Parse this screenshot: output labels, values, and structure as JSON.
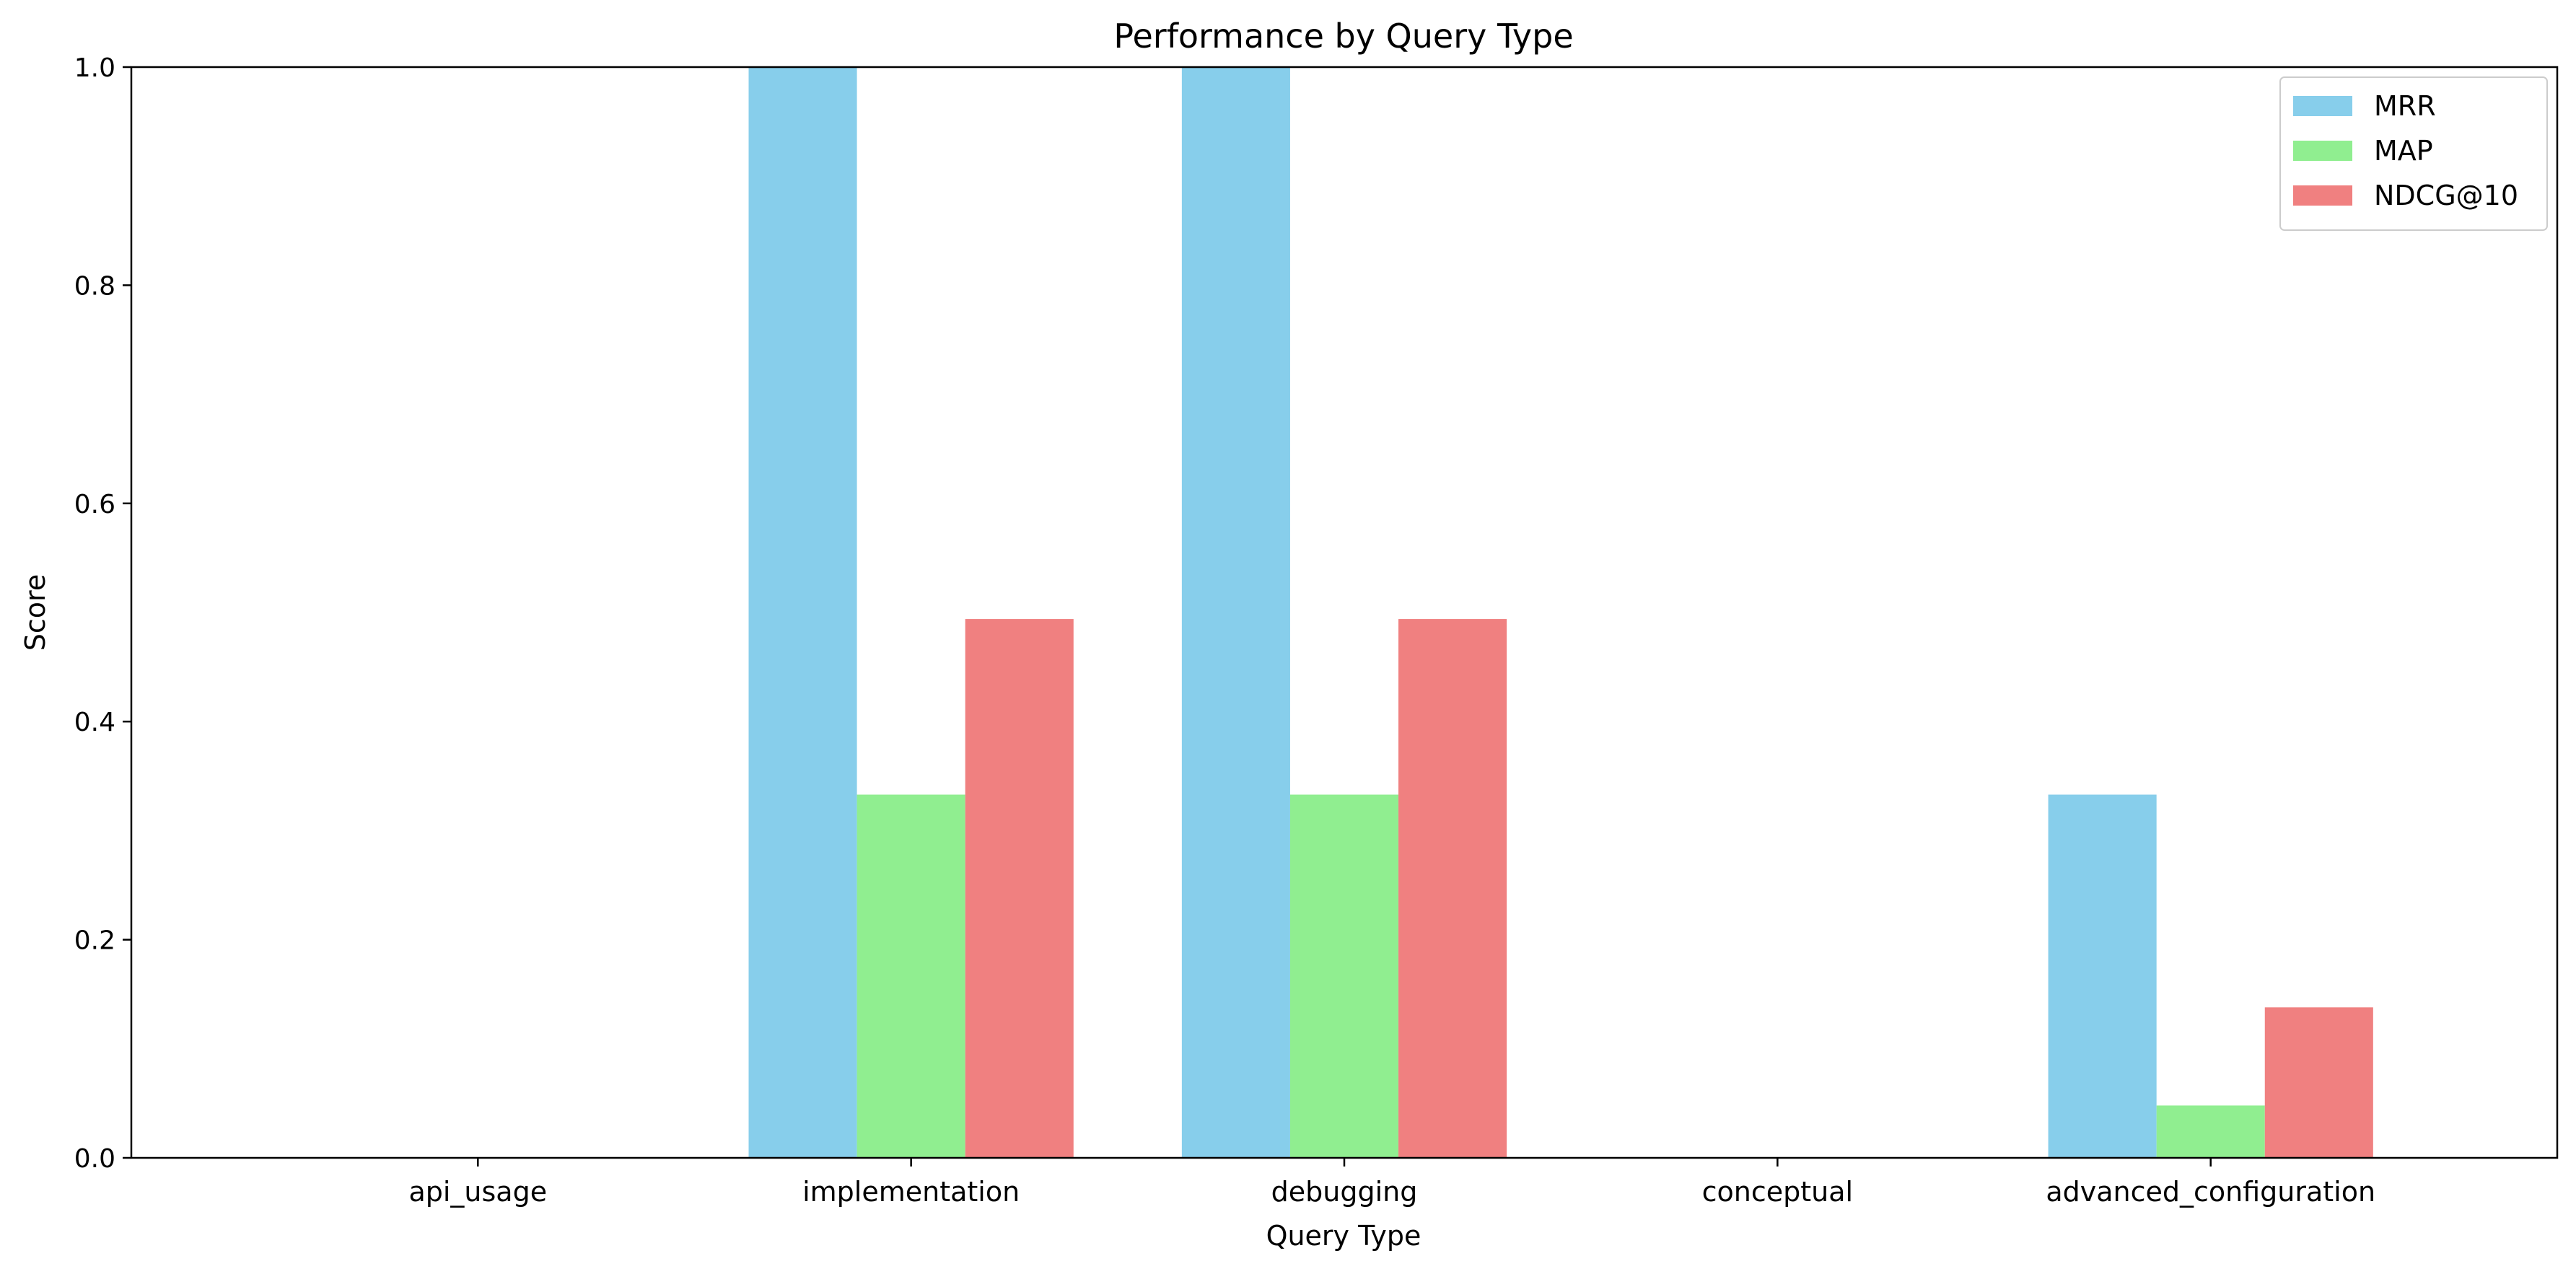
{
  "chart_data": {
    "type": "bar",
    "title": "Performance by Query Type",
    "xlabel": "Query Type",
    "ylabel": "Score",
    "ylim": [
      0,
      1
    ],
    "yticks": [
      0.0,
      0.2,
      0.4,
      0.6,
      0.8,
      1.0
    ],
    "ytick_labels": [
      "0.0",
      "0.2",
      "0.4",
      "0.6",
      "0.8",
      "1.0"
    ],
    "categories": [
      "api_usage",
      "implementation",
      "debugging",
      "conceptual",
      "advanced_configuration"
    ],
    "series": [
      {
        "name": "MRR",
        "color": "#87CEEB",
        "values": [
          0.0,
          1.0,
          1.0,
          0.0,
          0.333
        ]
      },
      {
        "name": "MAP",
        "color": "#90EE90",
        "values": [
          0.0,
          0.333,
          0.333,
          0.0,
          0.048
        ]
      },
      {
        "name": "NDCG@10",
        "color": "#F08080",
        "values": [
          0.0,
          0.494,
          0.494,
          0.0,
          0.138
        ]
      }
    ],
    "grid": false,
    "legend_position": "top-right"
  }
}
